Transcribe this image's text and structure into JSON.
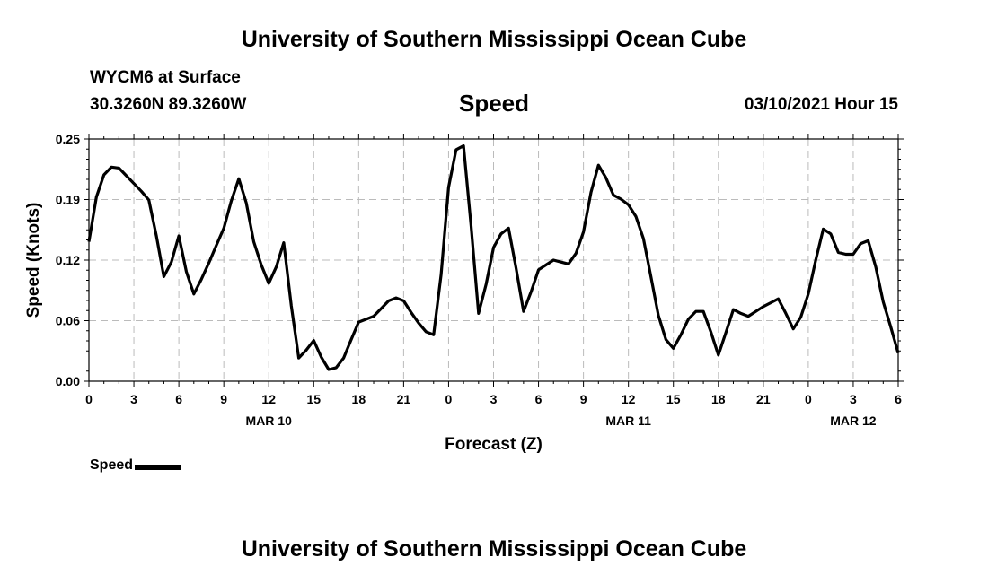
{
  "header": {
    "title": "University of Southern Mississippi Ocean Cube",
    "station": "WYCM6 at Surface",
    "coords": "30.3260N 89.3260W",
    "chart_title": "Speed",
    "run_time": "03/10/2021 Hour 15"
  },
  "footer": {
    "title": "University of Southern Mississippi Ocean Cube"
  },
  "legend": {
    "label": "Speed"
  },
  "chart_data": {
    "type": "line",
    "title": "Speed",
    "xlabel": "Forecast (Z)",
    "ylabel": "Speed (Knots)",
    "ylim": [
      0,
      0.25
    ],
    "xlim": [
      0,
      54
    ],
    "x_unit": "hours from 03/10/2021 00Z",
    "y_ticks": [
      "0.00",
      "0.06",
      "0.12",
      "0.19",
      "0.25"
    ],
    "y_tick_values": [
      0,
      0.0625,
      0.125,
      0.1875,
      0.25
    ],
    "x_tick_labels": [
      "0",
      "3",
      "6",
      "9",
      "12",
      "15",
      "18",
      "21",
      "0",
      "3",
      "6",
      "9",
      "12",
      "15",
      "18",
      "21",
      "0",
      "3",
      "6"
    ],
    "day_labels": [
      {
        "label": "MAR 10",
        "hour": 12
      },
      {
        "label": "MAR 11",
        "hour": 36
      },
      {
        "label": "MAR 12",
        "hour": 51
      }
    ],
    "grid": true,
    "line_color": "#000000",
    "series": [
      {
        "name": "Speed",
        "x": [
          0,
          0.5,
          1,
          1.5,
          2,
          2.5,
          3,
          3.5,
          4,
          4.5,
          5,
          5.5,
          6,
          6.5,
          7,
          7.5,
          8,
          8.5,
          9,
          9.5,
          10,
          10.5,
          11,
          11.5,
          12,
          12.5,
          13,
          13.5,
          14,
          14.5,
          15,
          15.5,
          16,
          16.5,
          17,
          17.5,
          18,
          18.5,
          19,
          19.5,
          20,
          20.5,
          21,
          21.5,
          22,
          22.5,
          23,
          23.5,
          24,
          24.5,
          25,
          25.5,
          26,
          26.5,
          27,
          27.5,
          28,
          28.5,
          29,
          29.5,
          30,
          30.5,
          31,
          31.5,
          32,
          32.5,
          33,
          33.5,
          34,
          34.5,
          35,
          35.5,
          36,
          36.5,
          37,
          37.5,
          38,
          38.5,
          39,
          39.5,
          40,
          40.5,
          41,
          41.5,
          42,
          42.5,
          43,
          43.5,
          44,
          44.5,
          45,
          45.5,
          46,
          46.5,
          47,
          47.5,
          48,
          48.5,
          49,
          49.5,
          50,
          50.5,
          51,
          51.5,
          52,
          52.5,
          53,
          53.5,
          54
        ],
        "values": [
          0.144,
          0.19,
          0.213,
          0.221,
          0.22,
          0.212,
          0.204,
          0.196,
          0.187,
          0.15,
          0.108,
          0.123,
          0.15,
          0.113,
          0.09,
          0.105,
          0.122,
          0.14,
          0.158,
          0.186,
          0.209,
          0.184,
          0.144,
          0.12,
          0.101,
          0.118,
          0.143,
          0.078,
          0.024,
          0.032,
          0.042,
          0.025,
          0.012,
          0.014,
          0.024,
          0.043,
          0.061,
          0.064,
          0.067,
          0.075,
          0.083,
          0.086,
          0.083,
          0.071,
          0.06,
          0.051,
          0.048,
          0.11,
          0.2,
          0.239,
          0.243,
          0.16,
          0.07,
          0.1,
          0.138,
          0.152,
          0.158,
          0.117,
          0.072,
          0.092,
          0.115,
          0.12,
          0.125,
          0.123,
          0.121,
          0.132,
          0.154,
          0.195,
          0.223,
          0.21,
          0.192,
          0.188,
          0.182,
          0.17,
          0.147,
          0.108,
          0.068,
          0.043,
          0.034,
          0.048,
          0.064,
          0.072,
          0.072,
          0.051,
          0.027,
          0.05,
          0.074,
          0.07,
          0.067,
          0.072,
          0.077,
          0.081,
          0.085,
          0.07,
          0.054,
          0.066,
          0.09,
          0.125,
          0.157,
          0.152,
          0.133,
          0.131,
          0.131,
          0.142,
          0.145,
          0.118,
          0.082,
          0.056,
          0.029
        ]
      }
    ]
  }
}
